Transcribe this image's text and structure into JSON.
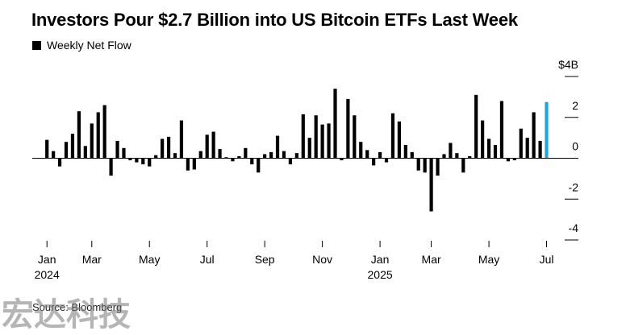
{
  "title": "Investors Pour $2.7 Billion into US Bitcoin ETFs Last Week",
  "legend": {
    "label": "Weekly Net Flow"
  },
  "source": "Source: Bloomberg",
  "watermark": "宏达科技",
  "colors": {
    "bar": "#000000",
    "highlight": "#1aa7e0",
    "axis": "#000000"
  },
  "chart_data": {
    "type": "bar",
    "title": "Investors Pour $2.7 Billion into US Bitcoin ETFs Last Week",
    "ylabel": "",
    "ylim": [
      -4,
      4
    ],
    "y_ticks": [
      {
        "value": 4,
        "label": "$4B"
      },
      {
        "value": 2,
        "label": "2"
      },
      {
        "value": 0,
        "label": "0"
      },
      {
        "value": -2,
        "label": "-2"
      },
      {
        "value": -4,
        "label": "-4"
      }
    ],
    "x_ticks": [
      {
        "index": 0,
        "label": "Jan",
        "sub": "2024"
      },
      {
        "index": 7,
        "label": "Mar",
        "sub": ""
      },
      {
        "index": 16,
        "label": "May",
        "sub": ""
      },
      {
        "index": 25,
        "label": "Jul",
        "sub": ""
      },
      {
        "index": 34,
        "label": "Sep",
        "sub": ""
      },
      {
        "index": 43,
        "label": "Nov",
        "sub": ""
      },
      {
        "index": 52,
        "label": "Jan",
        "sub": "2025"
      },
      {
        "index": 60,
        "label": "Mar",
        "sub": ""
      },
      {
        "index": 69,
        "label": "May",
        "sub": ""
      },
      {
        "index": 78,
        "label": "Jul",
        "sub": ""
      }
    ],
    "series": [
      {
        "name": "Weekly Net Flow",
        "values": [
          0.9,
          0.35,
          -0.4,
          0.8,
          1.2,
          2.3,
          0.6,
          1.7,
          2.25,
          2.6,
          -0.85,
          0.85,
          0.5,
          -0.1,
          -0.2,
          -0.3,
          -0.4,
          0.15,
          0.95,
          1.05,
          0.25,
          1.85,
          -0.6,
          -0.55,
          0.35,
          1.15,
          1.3,
          0.45,
          0.05,
          -0.15,
          0.1,
          0.5,
          -0.3,
          -0.7,
          0.2,
          0.3,
          1.1,
          0.35,
          -0.3,
          0.25,
          2.15,
          1.0,
          2.1,
          1.65,
          1.7,
          3.4,
          -0.1,
          2.9,
          2.1,
          0.8,
          0.4,
          -0.35,
          0.3,
          -0.2,
          2.2,
          1.8,
          0.65,
          0.3,
          -0.6,
          -0.7,
          -2.6,
          -0.85,
          0.2,
          0.75,
          0.25,
          -0.7,
          0.1,
          3.1,
          1.85,
          0.95,
          0.65,
          2.8,
          -0.15,
          -0.1,
          1.45,
          1.0,
          2.25,
          0.85,
          2.75
        ]
      }
    ],
    "highlight_last": true,
    "grid": false
  }
}
